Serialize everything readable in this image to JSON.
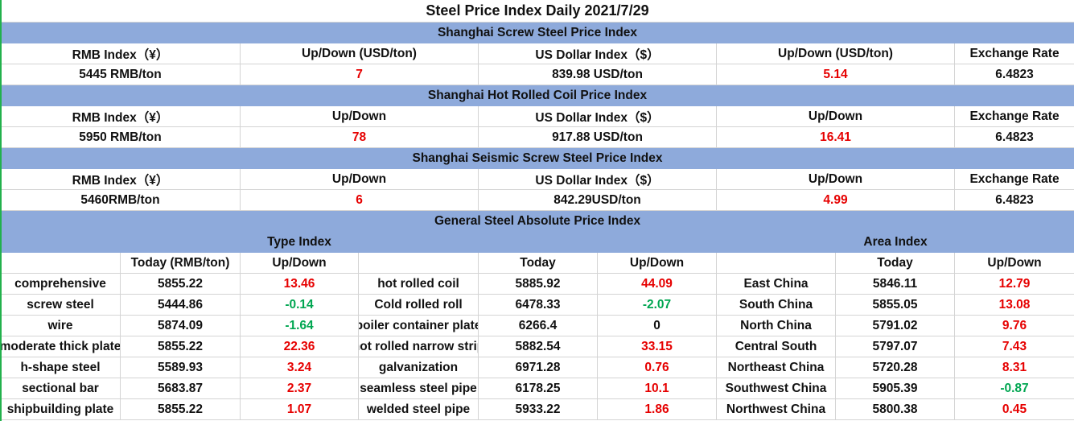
{
  "title": "Steel Price Index Daily  2021/7/29",
  "sections": [
    {
      "name": "Shanghai Screw Steel Price Index",
      "headers": [
        "RMB Index（¥）",
        "Up/Down (USD/ton)",
        "US Dollar Index（$）",
        "Up/Down (USD/ton)",
        "Exchange Rate"
      ],
      "values": [
        "5445 RMB/ton",
        "7",
        "839.98 USD/ton",
        "5.14",
        "6.4823"
      ]
    },
    {
      "name": "Shanghai Hot Rolled Coil Price Index",
      "headers": [
        "RMB Index（¥）",
        "Up/Down",
        "US Dollar Index（$）",
        "Up/Down",
        "Exchange Rate"
      ],
      "values": [
        "5950 RMB/ton",
        "78",
        "917.88 USD/ton",
        "16.41",
        "6.4823"
      ]
    },
    {
      "name": "Shanghai Seismic Screw Steel Price Index",
      "headers": [
        "RMB Index（¥）",
        "Up/Down",
        "US Dollar Index（$）",
        "Up/Down",
        "Exchange Rate"
      ],
      "values": [
        "5460RMB/ton",
        "6",
        "842.29USD/ton",
        "4.99",
        "6.4823"
      ]
    }
  ],
  "general": {
    "title": "General Steel Absolute Price Index",
    "type_index": "Type Index",
    "area_index": "Area Index",
    "headers": [
      "",
      "Today (RMB/ton)",
      "Up/Down",
      "",
      "Today",
      "Up/Down",
      "",
      "Today",
      "Up/Down"
    ],
    "rows": [
      [
        "comprehensive",
        "5855.22",
        "13.46",
        "hot rolled coil",
        "5885.92",
        "44.09",
        "East China",
        "5846.11",
        "12.79"
      ],
      [
        "screw steel",
        "5444.86",
        "-0.14",
        "Cold rolled roll",
        "6478.33",
        "-2.07",
        "South China",
        "5855.05",
        "13.08"
      ],
      [
        "wire",
        "5874.09",
        "-1.64",
        "boiler container plate",
        "6266.4",
        "0",
        "North China",
        "5791.02",
        "9.76"
      ],
      [
        "moderate thick plate",
        "5855.22",
        "22.36",
        "hot rolled narrow strip",
        "5882.54",
        "33.15",
        "Central South",
        "5797.07",
        "7.43"
      ],
      [
        "h-shape steel",
        "5589.93",
        "3.24",
        "galvanization",
        "6971.28",
        "0.76",
        "Northeast China",
        "5720.28",
        "8.31"
      ],
      [
        "sectional bar",
        "5683.87",
        "2.37",
        "seamless steel pipe",
        "6178.25",
        "10.1",
        "Southwest China",
        "5905.39",
        "-0.87"
      ],
      [
        "shipbuilding plate",
        "5855.22",
        "1.07",
        "welded steel pipe",
        "5933.22",
        "1.86",
        "Northwest China",
        "5800.38",
        "0.45"
      ]
    ]
  },
  "colors": {
    "header_blue": "#8eaadb",
    "up": "#e60000",
    "down": "#00a651"
  }
}
